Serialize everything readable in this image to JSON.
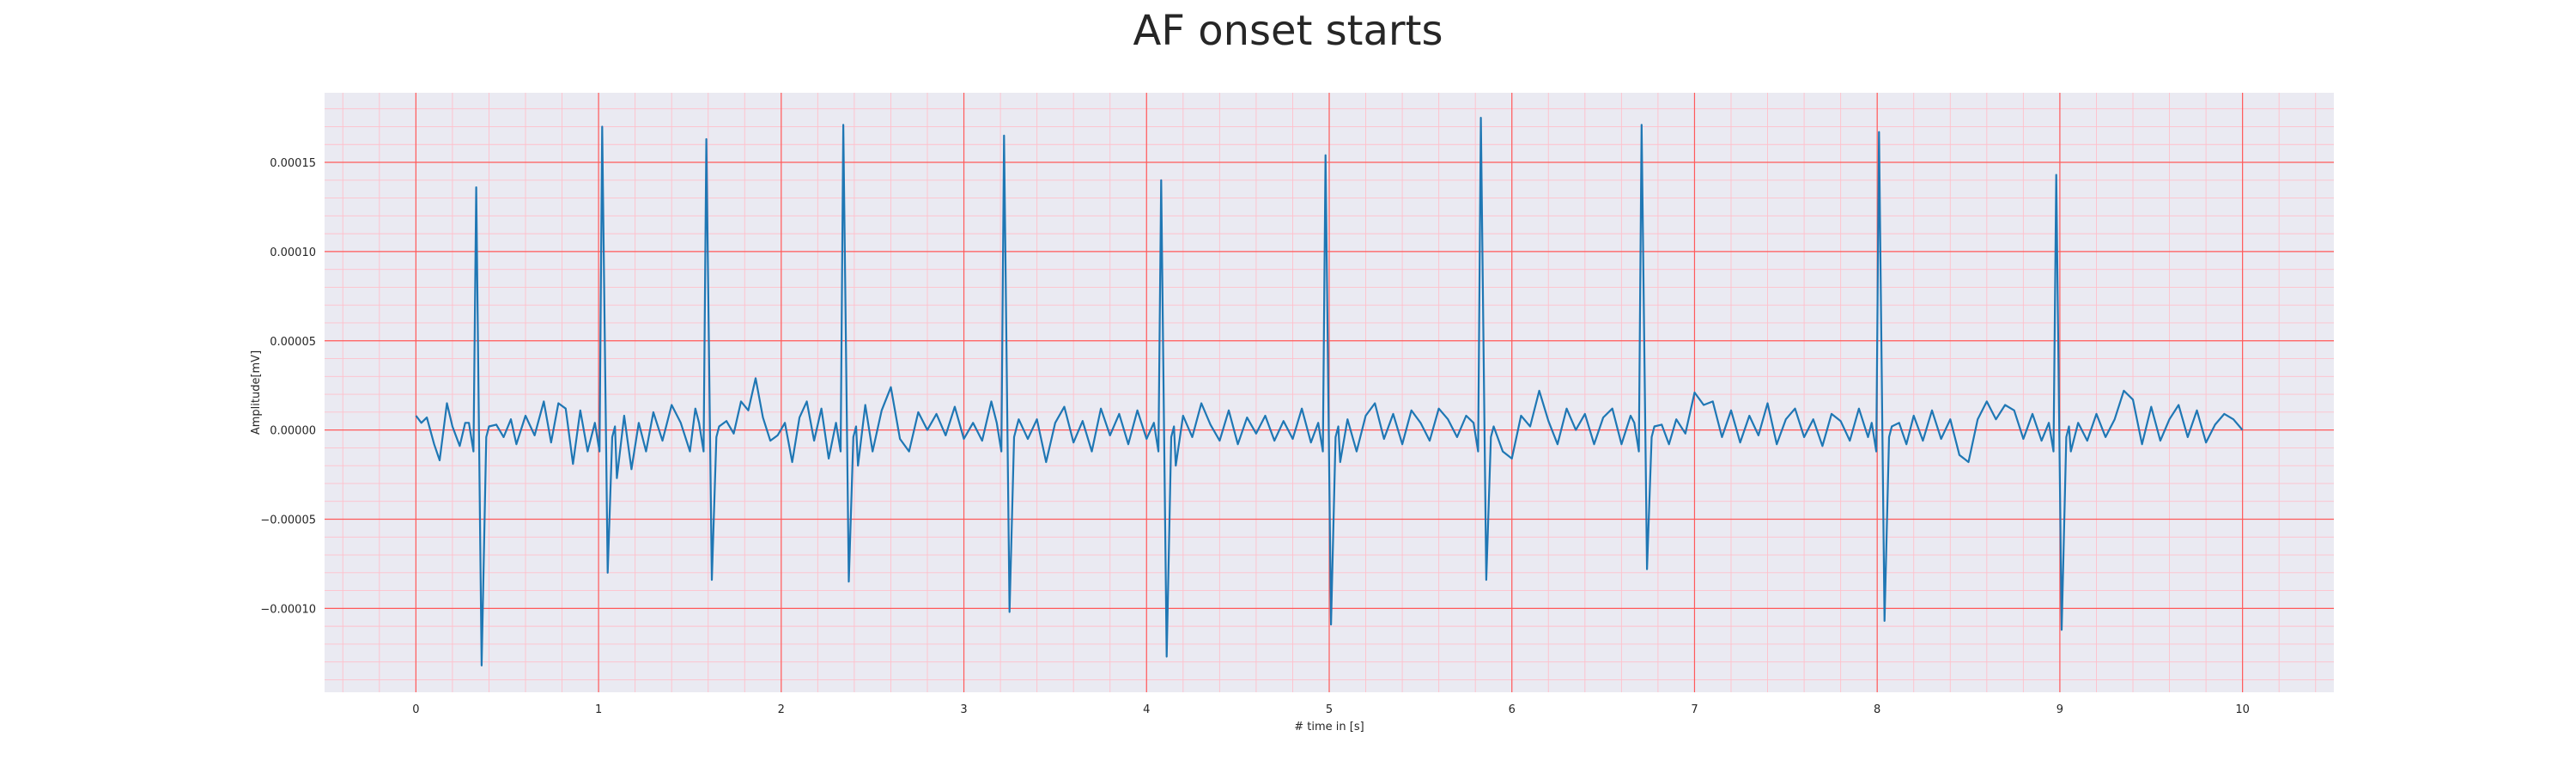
{
  "colors": {
    "background": "#eaeaf2",
    "major_grid": "#ff5a5a",
    "minor_grid": "#ffc0cb",
    "line": "#1f77b4"
  },
  "chart_data": {
    "type": "line",
    "title": "AF onset starts",
    "xlabel": "# time in [s]",
    "ylabel": "Amplitude[mV]",
    "xlim": [
      -0.5,
      10.5
    ],
    "ylim": [
      -0.000147,
      0.000189
    ],
    "grid": true,
    "legend": false,
    "x_ticks": [
      0,
      1,
      2,
      3,
      4,
      5,
      6,
      7,
      8,
      9,
      10
    ],
    "x_tick_labels": [
      "0",
      "1",
      "2",
      "3",
      "4",
      "5",
      "6",
      "7",
      "8",
      "9",
      "10"
    ],
    "y_ticks": [
      0.00015,
      0.0001,
      5e-05,
      0.0,
      -5e-05,
      -0.0001
    ],
    "y_tick_labels": [
      "0.00015",
      "0.00010",
      "0.00005",
      "0.00000",
      "−0.00005",
      "−0.00010"
    ],
    "series": [
      {
        "color": "#1f77b4",
        "beats": [
          {
            "t": 0.33,
            "peak": 0.000136,
            "trough": -0.000132
          },
          {
            "t": 1.02,
            "peak": 0.00017,
            "trough": -8e-05
          },
          {
            "t": 1.59,
            "peak": 0.000163,
            "trough": -8.4e-05
          },
          {
            "t": 2.34,
            "peak": 0.000171,
            "trough": -8.5e-05
          },
          {
            "t": 3.22,
            "peak": 0.000165,
            "trough": -0.000102
          },
          {
            "t": 4.08,
            "peak": 0.00014,
            "trough": -0.000127
          },
          {
            "t": 4.98,
            "peak": 0.000154,
            "trough": -0.000109
          },
          {
            "t": 5.83,
            "peak": 0.000175,
            "trough": -8.4e-05
          },
          {
            "t": 6.71,
            "peak": 0.000171,
            "trough": -7.8e-05
          },
          {
            "t": 8.01,
            "peak": 0.000167,
            "trough": -0.000107
          },
          {
            "t": 8.98,
            "peak": 0.000143,
            "trough": -0.000112
          }
        ],
        "baseline": [
          [
            0.0,
            8e-06
          ],
          [
            0.03,
            4e-06
          ],
          [
            0.06,
            7e-06
          ],
          [
            0.1,
            -8e-06
          ],
          [
            0.13,
            -1.7e-05
          ],
          [
            0.17,
            1.5e-05
          ],
          [
            0.2,
            2e-06
          ],
          [
            0.24,
            -9e-06
          ],
          [
            0.27,
            4e-06
          ],
          [
            0.3,
            0.0
          ],
          [
            0.4,
            -6e-06
          ],
          [
            0.44,
            3e-06
          ],
          [
            0.48,
            -4e-06
          ],
          [
            0.52,
            6e-06
          ],
          [
            0.55,
            -8e-06
          ],
          [
            0.6,
            8e-06
          ],
          [
            0.65,
            -3e-06
          ],
          [
            0.7,
            1.6e-05
          ],
          [
            0.74,
            -7e-06
          ],
          [
            0.78,
            1.5e-05
          ],
          [
            0.82,
            1.2e-05
          ],
          [
            0.86,
            -1.9e-05
          ],
          [
            0.9,
            1.1e-05
          ],
          [
            0.94,
            -1.2e-05
          ],
          [
            0.98,
            1.3e-05
          ],
          [
            1.1,
            -2.7e-05
          ],
          [
            1.14,
            8e-06
          ],
          [
            1.18,
            -2.2e-05
          ],
          [
            1.22,
            4e-06
          ],
          [
            1.26,
            -1.2e-05
          ],
          [
            1.3,
            1e-05
          ],
          [
            1.35,
            -6e-06
          ],
          [
            1.4,
            1.4e-05
          ],
          [
            1.45,
            4e-06
          ],
          [
            1.5,
            -1.2e-05
          ],
          [
            1.53,
            1.2e-05
          ],
          [
            1.66,
            -3.3e-05
          ],
          [
            1.7,
            5e-06
          ],
          [
            1.74,
            -2e-06
          ],
          [
            1.78,
            1.6e-05
          ],
          [
            1.82,
            1.1e-05
          ],
          [
            1.86,
            2.9e-05
          ],
          [
            1.9,
            7e-06
          ],
          [
            1.94,
            -6e-06
          ],
          [
            1.98,
            -3e-06
          ],
          [
            2.02,
            4e-06
          ],
          [
            2.06,
            -1.8e-05
          ],
          [
            2.1,
            7e-06
          ],
          [
            2.14,
            1.6e-05
          ],
          [
            2.18,
            -6e-06
          ],
          [
            2.22,
            1.2e-05
          ],
          [
            2.26,
            -1.6e-05
          ],
          [
            2.3,
            4e-06
          ],
          [
            2.42,
            -2e-05
          ],
          [
            2.46,
            1.4e-05
          ],
          [
            2.5,
            -1.2e-05
          ],
          [
            2.55,
            1.1e-05
          ],
          [
            2.6,
            2.4e-05
          ],
          [
            2.65,
            -5e-06
          ],
          [
            2.7,
            -1.2e-05
          ],
          [
            2.75,
            1e-05
          ],
          [
            2.8,
            0.0
          ],
          [
            2.85,
            9e-06
          ],
          [
            2.9,
            -3e-06
          ],
          [
            2.95,
            1.3e-05
          ],
          [
            3.0,
            -5e-06
          ],
          [
            3.05,
            4e-06
          ],
          [
            3.1,
            -6e-06
          ],
          [
            3.15,
            1.6e-05
          ],
          [
            3.18,
            -1.2e-05
          ],
          [
            3.3,
            6e-06
          ],
          [
            3.35,
            -5e-06
          ],
          [
            3.4,
            6e-06
          ],
          [
            3.45,
            -1.8e-05
          ],
          [
            3.5,
            4e-06
          ],
          [
            3.55,
            1.3e-05
          ],
          [
            3.6,
            -7e-06
          ],
          [
            3.65,
            5e-06
          ],
          [
            3.7,
            -1.2e-05
          ],
          [
            3.75,
            1.2e-05
          ],
          [
            3.8,
            -3e-06
          ],
          [
            3.85,
            9e-06
          ],
          [
            3.9,
            -8e-06
          ],
          [
            3.95,
            1.1e-05
          ],
          [
            4.0,
            -5e-06
          ],
          [
            4.04,
            6e-06
          ],
          [
            4.16,
            -2e-05
          ],
          [
            4.2,
            8e-06
          ],
          [
            4.25,
            -4e-06
          ],
          [
            4.3,
            1.5e-05
          ],
          [
            4.35,
            3e-06
          ],
          [
            4.4,
            -6e-06
          ],
          [
            4.45,
            1.1e-05
          ],
          [
            4.5,
            -8e-06
          ],
          [
            4.55,
            7e-06
          ],
          [
            4.6,
            -2e-06
          ],
          [
            4.65,
            8e-06
          ],
          [
            4.7,
            -6e-06
          ],
          [
            4.75,
            5e-06
          ],
          [
            4.8,
            -5e-06
          ],
          [
            4.85,
            1.2e-05
          ],
          [
            4.9,
            -7e-06
          ],
          [
            4.94,
            3e-06
          ],
          [
            5.06,
            -1.8e-05
          ],
          [
            5.1,
            6e-06
          ],
          [
            5.15,
            -1.2e-05
          ],
          [
            5.2,
            8e-06
          ],
          [
            5.25,
            1.5e-05
          ],
          [
            5.3,
            -5e-06
          ],
          [
            5.35,
            9e-06
          ],
          [
            5.4,
            -8e-06
          ],
          [
            5.45,
            1.1e-05
          ],
          [
            5.5,
            4e-06
          ],
          [
            5.55,
            -6e-06
          ],
          [
            5.6,
            1.2e-05
          ],
          [
            5.65,
            6e-06
          ],
          [
            5.7,
            -4e-06
          ],
          [
            5.75,
            8e-06
          ],
          [
            5.79,
            -2e-06
          ],
          [
            5.9,
            -2.4e-05
          ],
          [
            5.95,
            -1.2e-05
          ],
          [
            6.0,
            -1.6e-05
          ],
          [
            6.05,
            8e-06
          ],
          [
            6.1,
            2e-06
          ],
          [
            6.15,
            2.2e-05
          ],
          [
            6.2,
            5e-06
          ],
          [
            6.25,
            -8e-06
          ],
          [
            6.3,
            1.2e-05
          ],
          [
            6.35,
            0.0
          ],
          [
            6.4,
            9e-06
          ],
          [
            6.45,
            -8e-06
          ],
          [
            6.5,
            7e-06
          ],
          [
            6.55,
            1.2e-05
          ],
          [
            6.6,
            -8e-06
          ],
          [
            6.65,
            8e-06
          ],
          [
            6.68,
            -4e-06
          ],
          [
            6.78,
            -1.8e-05
          ],
          [
            6.82,
            3e-06
          ],
          [
            6.86,
            -8e-06
          ],
          [
            6.9,
            6e-06
          ],
          [
            6.95,
            -2e-06
          ],
          [
            7.0,
            2.1e-05
          ],
          [
            7.05,
            1.4e-05
          ],
          [
            7.1,
            1.6e-05
          ],
          [
            7.15,
            -4e-06
          ],
          [
            7.2,
            1.1e-05
          ],
          [
            7.25,
            -7e-06
          ],
          [
            7.3,
            8e-06
          ],
          [
            7.35,
            -3e-06
          ],
          [
            7.4,
            1.5e-05
          ],
          [
            7.45,
            -8e-06
          ],
          [
            7.5,
            6e-06
          ],
          [
            7.55,
            1.2e-05
          ],
          [
            7.6,
            -4e-06
          ],
          [
            7.65,
            6e-06
          ],
          [
            7.7,
            -9e-06
          ],
          [
            7.75,
            9e-06
          ],
          [
            7.8,
            5e-06
          ],
          [
            7.85,
            -6e-06
          ],
          [
            7.9,
            1.2e-05
          ],
          [
            7.95,
            -4e-06
          ],
          [
            7.98,
            3e-06
          ],
          [
            8.08,
            -2.2e-05
          ],
          [
            8.12,
            4e-06
          ],
          [
            8.16,
            -8e-06
          ],
          [
            8.2,
            8e-06
          ],
          [
            8.25,
            -6e-06
          ],
          [
            8.3,
            1.1e-05
          ],
          [
            8.35,
            -5e-06
          ],
          [
            8.4,
            6e-06
          ],
          [
            8.45,
            -1.4e-05
          ],
          [
            8.5,
            -1.8e-05
          ],
          [
            8.55,
            6e-06
          ],
          [
            8.6,
            1.6e-05
          ],
          [
            8.65,
            6e-06
          ],
          [
            8.7,
            1.4e-05
          ],
          [
            8.75,
            1.1e-05
          ],
          [
            8.8,
            -5e-06
          ],
          [
            8.85,
            9e-06
          ],
          [
            8.9,
            -6e-06
          ],
          [
            8.94,
            4e-06
          ],
          [
            9.06,
            -1.2e-05
          ],
          [
            9.1,
            4e-06
          ],
          [
            9.15,
            -6e-06
          ],
          [
            9.2,
            9e-06
          ],
          [
            9.25,
            -4e-06
          ],
          [
            9.3,
            6e-06
          ],
          [
            9.35,
            2.2e-05
          ],
          [
            9.4,
            1.7e-05
          ],
          [
            9.45,
            -8e-06
          ],
          [
            9.5,
            1.3e-05
          ],
          [
            9.55,
            -6e-06
          ],
          [
            9.6,
            6e-06
          ],
          [
            9.65,
            1.4e-05
          ],
          [
            9.7,
            -4e-06
          ],
          [
            9.75,
            1.1e-05
          ],
          [
            9.8,
            -7e-06
          ],
          [
            9.85,
            3e-06
          ],
          [
            9.9,
            9e-06
          ],
          [
            9.95,
            6e-06
          ],
          [
            10.0,
            0.0
          ]
        ]
      }
    ]
  }
}
